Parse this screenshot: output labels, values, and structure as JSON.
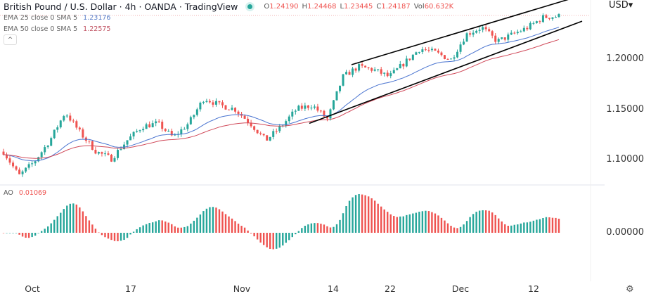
{
  "header": {
    "title": "British Pound / U.S. Dollar · 4h · OANDA · TradingView",
    "ohlc": [
      {
        "k": "O",
        "v": "1.24190"
      },
      {
        "k": "H",
        "v": "1.24468"
      },
      {
        "k": "L",
        "v": "1.23445"
      },
      {
        "k": "C",
        "v": "1.24187"
      },
      {
        "k": "Vol",
        "v": "60.632K"
      }
    ],
    "market_status_color": "#26a69a"
  },
  "indicators": {
    "ema25": {
      "label": "EMA 25 close 0 SMA 5",
      "value": "1.23176",
      "color": "#4a74d0"
    },
    "ema50": {
      "label": "EMA 50 close 0 SMA 5",
      "value": "1.22575",
      "color": "#d04a5a"
    },
    "collapse_icon": "chevron-up-icon"
  },
  "ao": {
    "label": "AO",
    "value": "0.01069",
    "up_color": "#26a69a",
    "down_color": "#ef5350"
  },
  "price_axis": {
    "currency": "USD",
    "ticks": [
      "1.20000",
      "1.15000",
      "1.10000"
    ],
    "ao_ticks": [
      "0.00000"
    ]
  },
  "time_axis": [
    "Oct",
    "17",
    "Nov",
    "14",
    "22",
    "Dec",
    "12"
  ],
  "settings_icon": "gear-icon",
  "chart_data": {
    "type": "candlestick",
    "ylim": [
      1.0757,
      1.258
    ],
    "up_color": "#26a69a",
    "down_color": "#ef5350",
    "approx_close_path": [
      1.108,
      1.084,
      1.098,
      1.119,
      1.147,
      1.126,
      1.108,
      1.101,
      1.119,
      1.133,
      1.136,
      1.122,
      1.136,
      1.161,
      1.154,
      1.15,
      1.136,
      1.119,
      1.133,
      1.15,
      1.154,
      1.14,
      1.182,
      1.192,
      1.189,
      1.182,
      1.196,
      1.21,
      1.206,
      1.199,
      1.224,
      1.231,
      1.217,
      1.224,
      1.231,
      1.241,
      1.242
    ],
    "trendlines": [
      {
        "name": "upper-channel",
        "from": 1.194,
        "to": 1.262
      },
      {
        "name": "lower-channel",
        "from": 1.136,
        "to": 1.237
      }
    ]
  }
}
